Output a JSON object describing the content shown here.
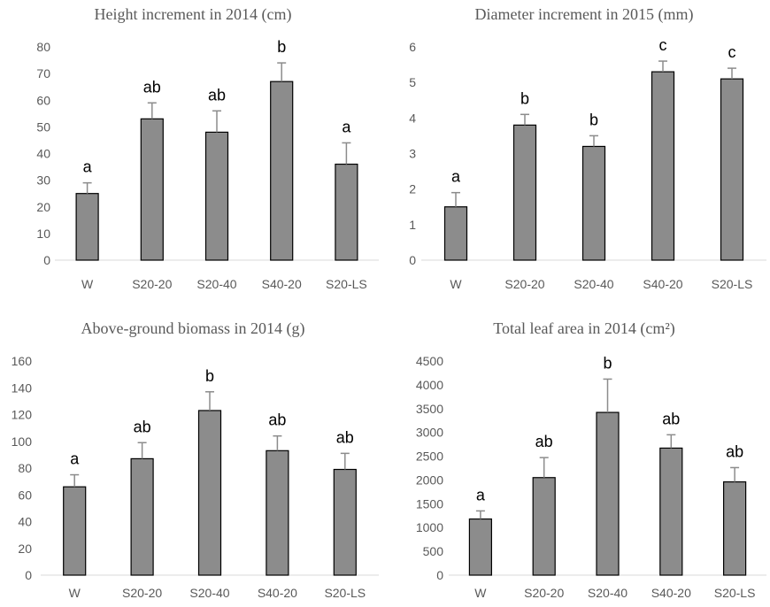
{
  "chart_data": [
    {
      "type": "bar",
      "title": "Height increment in 2014 (cm)",
      "categories": [
        "W",
        "S20-20",
        "S20-40",
        "S40-20",
        "S20-LS"
      ],
      "values": [
        25,
        53,
        48,
        67,
        36
      ],
      "errors": [
        4,
        6,
        8,
        7,
        8
      ],
      "labels": [
        "a",
        "ab",
        "ab",
        "b",
        "a"
      ],
      "ylim": [
        0,
        80
      ],
      "yticks": [
        0,
        10,
        20,
        30,
        40,
        50,
        60,
        70,
        80
      ]
    },
    {
      "type": "bar",
      "title": "Diameter increment in 2015 (mm)",
      "categories": [
        "W",
        "S20-20",
        "S20-40",
        "S40-20",
        "S20-LS"
      ],
      "values": [
        1.5,
        3.8,
        3.2,
        5.3,
        5.1
      ],
      "errors": [
        0.4,
        0.3,
        0.3,
        0.3,
        0.3
      ],
      "labels": [
        "a",
        "b",
        "b",
        "c",
        "c"
      ],
      "ylim": [
        0,
        6
      ],
      "yticks": [
        0,
        1,
        2,
        3,
        4,
        5,
        6
      ]
    },
    {
      "type": "bar",
      "title": "Above-ground biomass in 2014 (g)",
      "categories": [
        "W",
        "S20-20",
        "S20-40",
        "S40-20",
        "S20-LS"
      ],
      "values": [
        66,
        87,
        123,
        93,
        79
      ],
      "errors": [
        9,
        12,
        14,
        11,
        12
      ],
      "labels": [
        "a",
        "ab",
        "b",
        "ab",
        "ab"
      ],
      "ylim": [
        0,
        160
      ],
      "yticks": [
        0,
        20,
        40,
        60,
        80,
        100,
        120,
        140,
        160
      ]
    },
    {
      "type": "bar",
      "title": "Total leaf area in 2014 (cm²)",
      "categories": [
        "W",
        "S20-20",
        "S20-40",
        "S40-20",
        "S20-LS"
      ],
      "values": [
        1180,
        2050,
        3420,
        2670,
        1960
      ],
      "errors": [
        170,
        420,
        700,
        280,
        300
      ],
      "labels": [
        "a",
        "ab",
        "b",
        "ab",
        "ab"
      ],
      "ylim": [
        0,
        4500
      ],
      "yticks": [
        0,
        500,
        1000,
        1500,
        2000,
        2500,
        3000,
        3500,
        4000,
        4500
      ]
    }
  ]
}
